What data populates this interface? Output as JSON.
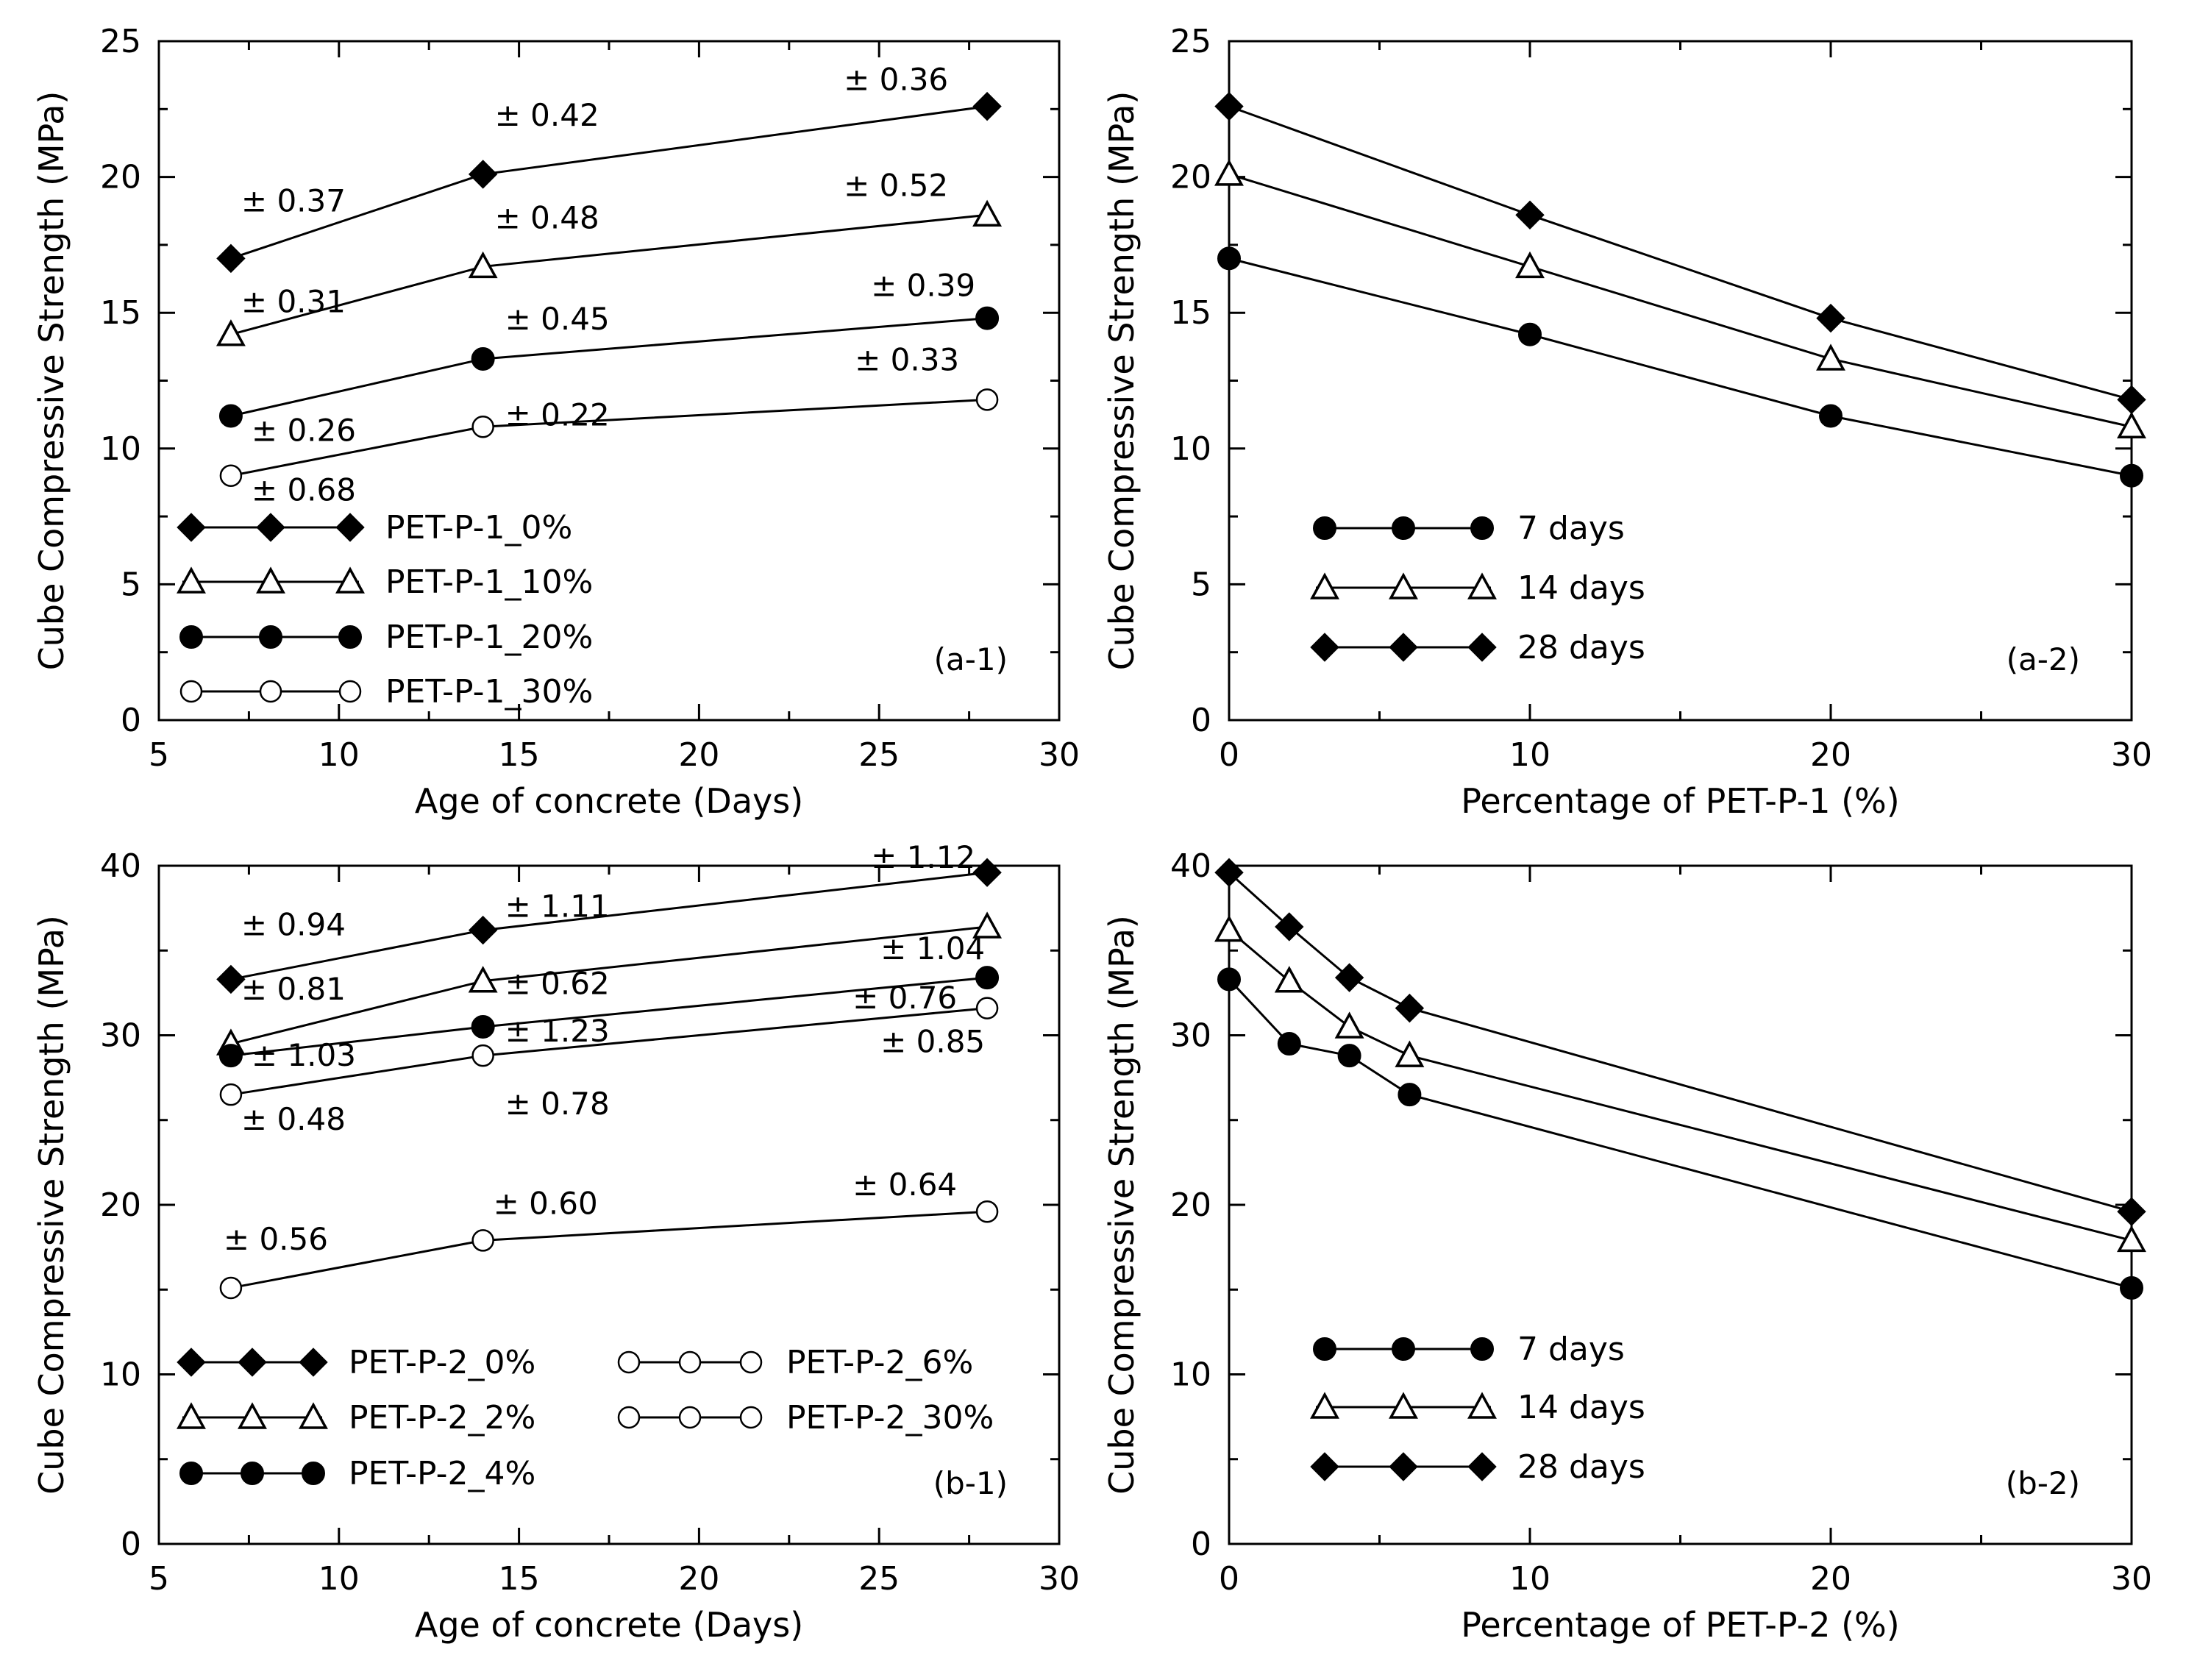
{
  "chart_data": [
    {
      "id": "a-1",
      "type": "line",
      "panel_label": "(a-1)",
      "xlabel": "Age of concrete (Days)",
      "ylabel": "Cube Compressive Strength (MPa)",
      "xlim": [
        5,
        30
      ],
      "ylim": [
        0,
        25
      ],
      "xticks": [
        5,
        10,
        15,
        20,
        25,
        30
      ],
      "yticks": [
        0,
        5,
        10,
        15,
        20,
        25
      ],
      "x": [
        7,
        14,
        28
      ],
      "series": [
        {
          "name": "PET-P-1_0%",
          "marker": "diamond",
          "values": [
            17.0,
            20.1,
            22.6
          ],
          "errors": [
            "± 0.37",
            "± 0.42",
            "± 0.36"
          ]
        },
        {
          "name": "PET-P-1_10%",
          "marker": "triangle",
          "values": [
            14.2,
            16.7,
            18.6
          ],
          "errors": [
            "± 0.31",
            "± 0.48",
            "± 0.52"
          ]
        },
        {
          "name": "PET-P-1_20%",
          "marker": "circle-filled",
          "values": [
            11.2,
            13.3,
            14.8
          ],
          "errors": [
            "± 0.26",
            "± 0.45",
            "± 0.39"
          ]
        },
        {
          "name": "PET-P-1_30%",
          "marker": "circle-open",
          "values": [
            9.0,
            10.8,
            11.8
          ],
          "errors": [
            "± 0.68",
            "± 0.22",
            "± 0.33"
          ]
        }
      ]
    },
    {
      "id": "a-2",
      "type": "line",
      "panel_label": "(a-2)",
      "xlabel": "Percentage of PET-P-1 (%)",
      "ylabel": "Cube Compressive Strength (MPa)",
      "xlim": [
        0,
        30
      ],
      "ylim": [
        0,
        25
      ],
      "xticks": [
        0,
        10,
        20,
        30
      ],
      "yticks": [
        0,
        5,
        10,
        15,
        20,
        25
      ],
      "x": [
        0,
        10,
        20,
        30
      ],
      "series": [
        {
          "name": "7 days",
          "marker": "circle-filled",
          "values": [
            17.0,
            14.2,
            11.2,
            9.0
          ]
        },
        {
          "name": "14 days",
          "marker": "triangle",
          "values": [
            20.1,
            16.7,
            13.3,
            10.8
          ]
        },
        {
          "name": "28 days",
          "marker": "diamond",
          "values": [
            22.6,
            18.6,
            14.8,
            11.8
          ]
        }
      ]
    },
    {
      "id": "b-1",
      "type": "line",
      "panel_label": "(b-1)",
      "xlabel": "Age of concrete (Days)",
      "ylabel": "Cube Compressive Strength (MPa)",
      "xlim": [
        5,
        30
      ],
      "ylim": [
        0,
        40
      ],
      "xticks": [
        5,
        10,
        15,
        20,
        25,
        30
      ],
      "yticks": [
        0,
        10,
        20,
        30,
        40
      ],
      "x": [
        7,
        14,
        28
      ],
      "series": [
        {
          "name": "PET-P-2_0%",
          "marker": "diamond",
          "values": [
            33.3,
            36.2,
            39.6
          ],
          "errors": [
            "± 0.94",
            "± 1.11",
            "± 1.12"
          ]
        },
        {
          "name": "PET-P-2_2%",
          "marker": "triangle",
          "values": [
            29.5,
            33.2,
            36.4
          ],
          "errors": [
            "± 0.81",
            "± 0.62",
            "± 1.04"
          ]
        },
        {
          "name": "PET-P-2_4%",
          "marker": "circle-filled",
          "values": [
            28.8,
            30.5,
            33.4
          ],
          "errors": [
            "± 1.03",
            "± 1.23",
            "± 0.76"
          ]
        },
        {
          "name": "PET-P-2_6%",
          "marker": "circle-open",
          "values": [
            26.5,
            28.8,
            31.6
          ],
          "errors": [
            "± 0.48",
            "± 0.78",
            "± 0.85"
          ]
        },
        {
          "name": "PET-P-2_30%",
          "marker": "circle-open",
          "values": [
            15.1,
            17.9,
            19.6
          ],
          "errors": [
            "± 0.56",
            "± 0.60",
            "± 0.64"
          ]
        }
      ]
    },
    {
      "id": "b-2",
      "type": "line",
      "panel_label": "(b-2)",
      "xlabel": "Percentage of PET-P-2 (%)",
      "ylabel": "Cube Compressive Strength (MPa)",
      "xlim": [
        0,
        30
      ],
      "ylim": [
        0,
        40
      ],
      "xticks": [
        0,
        10,
        20,
        30
      ],
      "yticks": [
        0,
        10,
        20,
        30,
        40
      ],
      "x": [
        0,
        2,
        4,
        6,
        30
      ],
      "series": [
        {
          "name": "7 days",
          "marker": "circle-filled",
          "values": [
            33.3,
            29.5,
            28.8,
            26.5,
            15.1
          ]
        },
        {
          "name": "14 days",
          "marker": "triangle",
          "values": [
            36.2,
            33.2,
            30.5,
            28.8,
            17.9
          ]
        },
        {
          "name": "28 days",
          "marker": "diamond",
          "values": [
            39.6,
            36.4,
            33.4,
            31.6,
            19.6
          ]
        }
      ]
    }
  ]
}
